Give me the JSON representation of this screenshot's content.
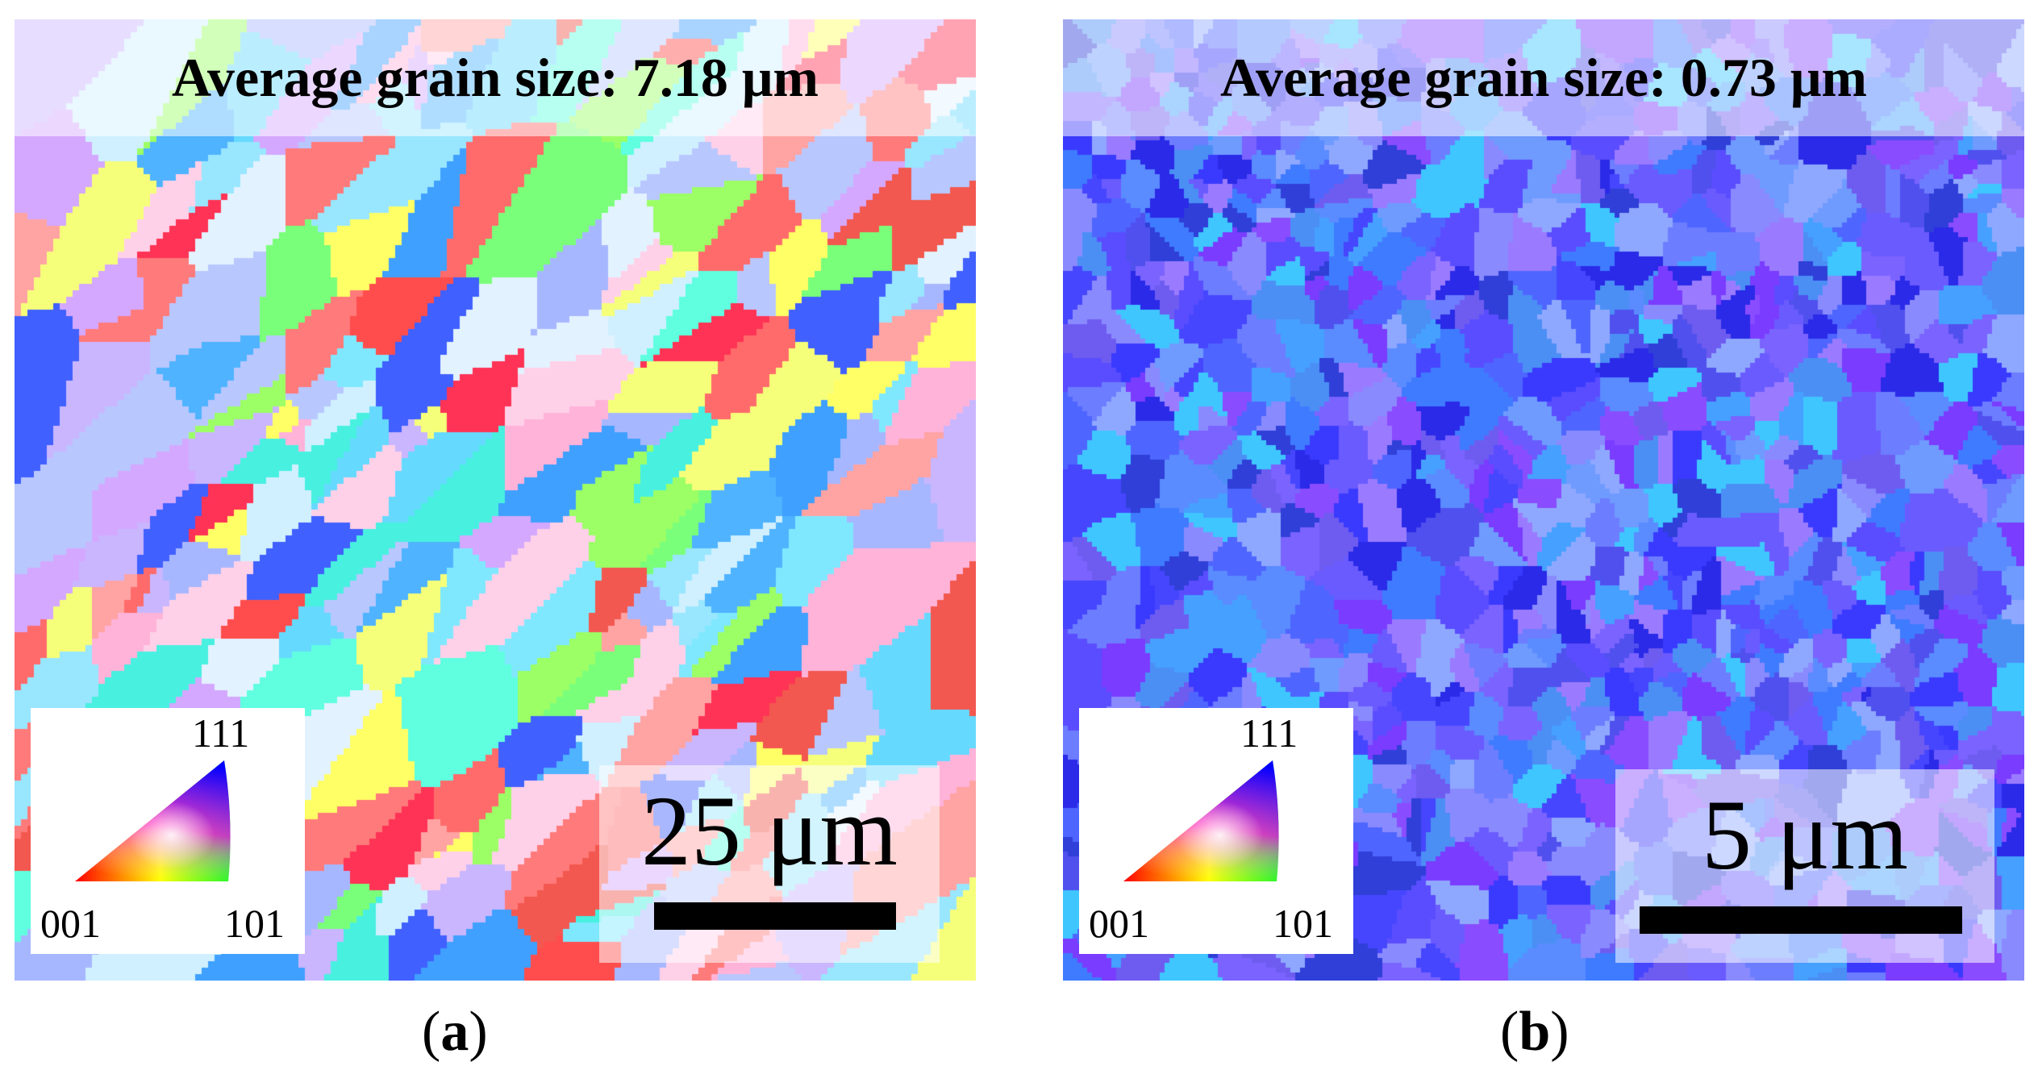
{
  "panels": [
    {
      "id": "a",
      "title": "Average grain size: 7.18 μm",
      "scale_label": "25 μm",
      "caption_open": "(",
      "caption_letter": "a",
      "caption_close": ")",
      "palette": [
        "#ff6b6b",
        "#ff4d4d",
        "#f2584f",
        "#ffa3a3",
        "#ff7a7a",
        "#7fe8ff",
        "#66d9ff",
        "#99e6ff",
        "#5fffe0",
        "#48f0e0",
        "#4fb3ff",
        "#3fa0ff",
        "#a7b7ff",
        "#b9c7ff",
        "#c9b6ff",
        "#d4a8ff",
        "#ffd1e8",
        "#ffb3d9",
        "#e3f2ff",
        "#d0f0ff",
        "#ffff66",
        "#f6ff7a",
        "#9cff66",
        "#7aff7a",
        "#ff3355",
        "#4060ff"
      ]
    },
    {
      "id": "b",
      "title": "Average grain size: 0.73 μm",
      "scale_label": "5 μm",
      "caption_open": "(",
      "caption_letter": "b",
      "caption_close": ")",
      "palette": [
        "#3a3aff",
        "#2a2ae8",
        "#4646ff",
        "#5a4dff",
        "#6a5bff",
        "#7a63ff",
        "#4e66ff",
        "#3f7bff",
        "#5a8bff",
        "#6f9bff",
        "#8a8aff",
        "#9a7bff",
        "#7a3cff",
        "#8a4cff",
        "#6e5cf0",
        "#5050ee",
        "#46a0ff",
        "#3fc6ff",
        "#4b8ff5",
        "#2f3fd8",
        "#6d7dff",
        "#8fa8ff"
      ]
    }
  ],
  "legend": {
    "v111": "111",
    "v001": "001",
    "v101": "101"
  }
}
